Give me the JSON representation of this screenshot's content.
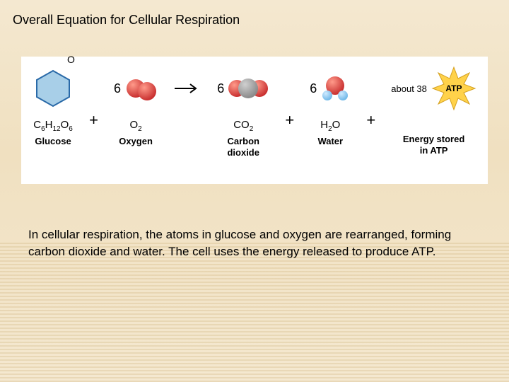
{
  "title": "Overall Equation for Cellular Respiration",
  "description": "In cellular respiration, the atoms in glucose and oxygen are rearranged, forming carbon dioxide and water. The cell uses the energy released to produce ATP.",
  "equation": {
    "glucose": {
      "o_label": "O",
      "formula_html": "C<sub>6</sub>H<sub>12</sub>O<sub>6</sub>",
      "name": "Glucose",
      "hex_fill": "#a8cfe8",
      "hex_stroke": "#2a6aa8"
    },
    "plus1": "+",
    "oxygen": {
      "coef": "6",
      "formula_html": "O<sub>2</sub>",
      "name": "Oxygen",
      "atom_color": "#c93030",
      "atom_highlight": "#ff9a8a"
    },
    "arrow": {
      "stroke": "#000000",
      "width": 2
    },
    "co2": {
      "coef": "6",
      "formula_html": "CO<sub>2</sub>",
      "name": "Carbon\ndioxide",
      "c_color": "#8a8a8a",
      "c_highlight": "#d0d0d0",
      "o_color": "#c93030",
      "o_highlight": "#ff9a8a"
    },
    "plus2": "+",
    "water": {
      "coef": "6",
      "formula_html": "H<sub>2</sub>O",
      "name": "Water",
      "o_color": "#c93030",
      "o_highlight": "#ff9a8a",
      "h_color": "#6fb8e8",
      "h_highlight": "#cfeaff"
    },
    "plus3": "+",
    "atp": {
      "about": "about 38",
      "star_fill": "#ffd24a",
      "star_stroke": "#d4a020",
      "star_label": "ATP",
      "name": "Energy stored\nin ATP"
    }
  }
}
